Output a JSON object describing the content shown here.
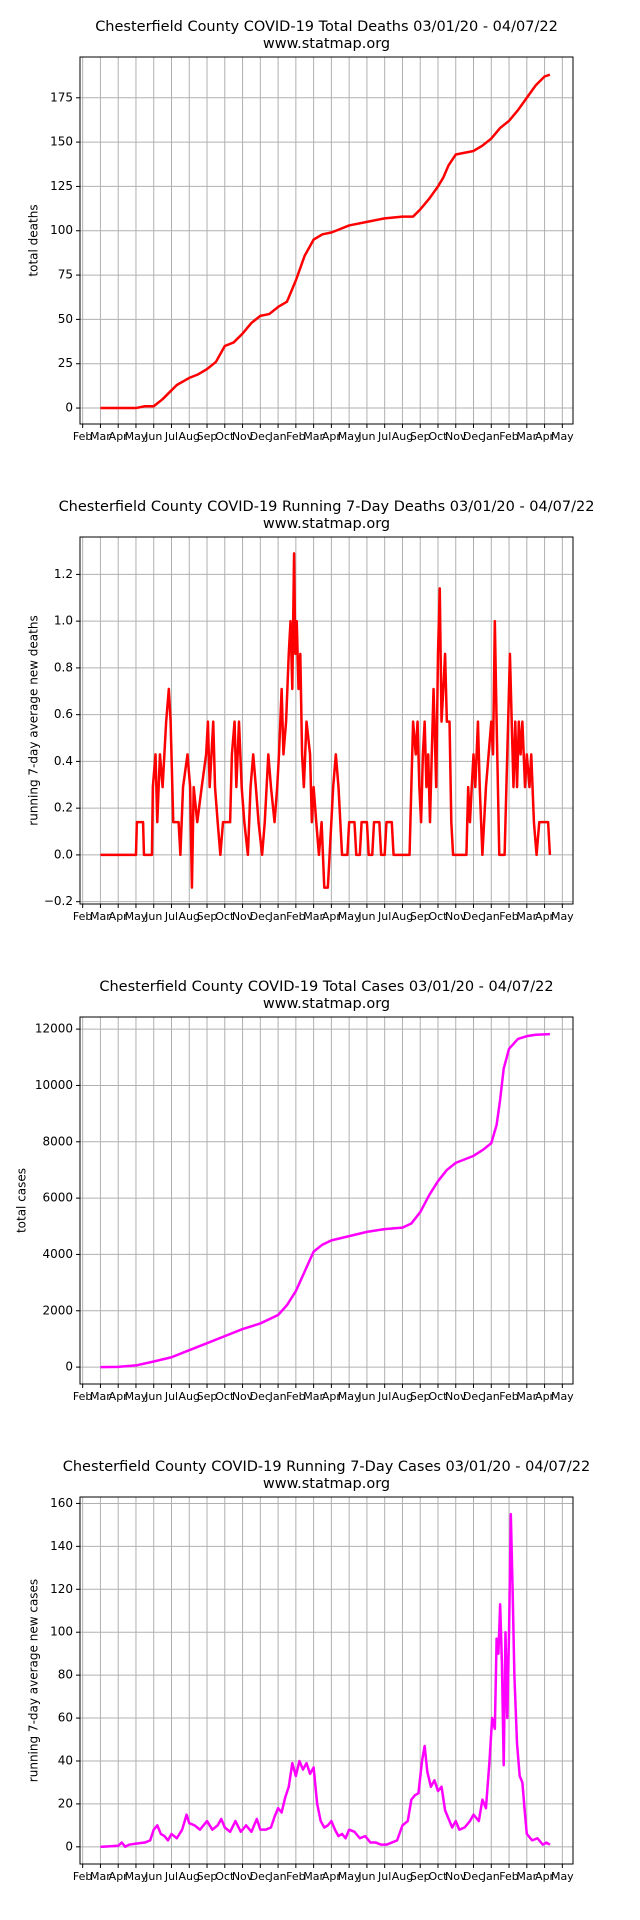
{
  "chart_data": [
    {
      "type": "line",
      "title": "Chesterfield County COVID-19 Total Deaths 03/01/20 - 04/07/22",
      "subtitle": "www.statmap.org",
      "ylabel": "total deaths",
      "color": "#ff0000",
      "grid": true,
      "xlim": [
        -0.15,
        27.6
      ],
      "ylim": [
        -9,
        198
      ],
      "xticks": [
        {
          "value": 0,
          "label": "Feb"
        },
        {
          "value": 1,
          "label": "Mar"
        },
        {
          "value": 2,
          "label": "Apr"
        },
        {
          "value": 3,
          "label": "May"
        },
        {
          "value": 4,
          "label": "Jun"
        },
        {
          "value": 5,
          "label": "Jul"
        },
        {
          "value": 6,
          "label": "Aug"
        },
        {
          "value": 7,
          "label": "Sep"
        },
        {
          "value": 8,
          "label": "Oct"
        },
        {
          "value": 9,
          "label": "Nov"
        },
        {
          "value": 10,
          "label": "Dec"
        },
        {
          "value": 11,
          "label": "Jan"
        },
        {
          "value": 12,
          "label": "Feb"
        },
        {
          "value": 13,
          "label": "Mar"
        },
        {
          "value": 14,
          "label": "Apr"
        },
        {
          "value": 15,
          "label": "May"
        },
        {
          "value": 16,
          "label": "Jun"
        },
        {
          "value": 17,
          "label": "Jul"
        },
        {
          "value": 18,
          "label": "Aug"
        },
        {
          "value": 19,
          "label": "Sep"
        },
        {
          "value": 20,
          "label": "Oct"
        },
        {
          "value": 21,
          "label": "Nov"
        },
        {
          "value": 22,
          "label": "Dec"
        },
        {
          "value": 23,
          "label": "Jan"
        },
        {
          "value": 24,
          "label": "Feb"
        },
        {
          "value": 25,
          "label": "Mar"
        },
        {
          "value": 26,
          "label": "Apr"
        },
        {
          "value": 27,
          "label": "May"
        }
      ],
      "yticks": [
        0,
        25,
        50,
        75,
        100,
        125,
        150,
        175
      ],
      "x": [
        1,
        2,
        3,
        3.5,
        4,
        4.5,
        5,
        5.3,
        6,
        6.5,
        7,
        7.5,
        8,
        8.5,
        9,
        9.5,
        10,
        10.5,
        11,
        11.5,
        12,
        12.5,
        13,
        13.5,
        14,
        14.5,
        15,
        16,
        17,
        18,
        18.6,
        19,
        19.5,
        20,
        20.3,
        20.6,
        21,
        22,
        22.5,
        23,
        23.5,
        24,
        24.5,
        25,
        25.5,
        26,
        26.3
      ],
      "values": [
        0,
        0,
        0,
        1,
        1,
        5,
        10,
        13,
        17,
        19,
        22,
        26,
        35,
        37,
        42,
        48,
        52,
        53,
        57,
        60,
        72,
        86,
        95,
        98,
        99,
        101,
        103,
        105,
        107,
        108,
        108,
        112,
        118,
        125,
        130,
        137,
        143,
        145,
        148,
        152,
        158,
        162,
        168,
        175,
        182,
        187,
        188
      ]
    },
    {
      "type": "line",
      "title": "Chesterfield County COVID-19 Running 7-Day Deaths 03/01/20 - 04/07/22",
      "subtitle": "www.statmap.org",
      "ylabel": "running 7-day average new deaths",
      "color": "#ff0000",
      "grid": true,
      "xlim": [
        -0.15,
        27.6
      ],
      "ylim": [
        -0.21,
        1.36
      ],
      "xticks": [
        {
          "value": 0,
          "label": "Feb"
        },
        {
          "value": 1,
          "label": "Mar"
        },
        {
          "value": 2,
          "label": "Apr"
        },
        {
          "value": 3,
          "label": "May"
        },
        {
          "value": 4,
          "label": "Jun"
        },
        {
          "value": 5,
          "label": "Jul"
        },
        {
          "value": 6,
          "label": "Aug"
        },
        {
          "value": 7,
          "label": "Sep"
        },
        {
          "value": 8,
          "label": "Oct"
        },
        {
          "value": 9,
          "label": "Nov"
        },
        {
          "value": 10,
          "label": "Dec"
        },
        {
          "value": 11,
          "label": "Jan"
        },
        {
          "value": 12,
          "label": "Feb"
        },
        {
          "value": 13,
          "label": "Mar"
        },
        {
          "value": 14,
          "label": "Apr"
        },
        {
          "value": 15,
          "label": "May"
        },
        {
          "value": 16,
          "label": "Jun"
        },
        {
          "value": 17,
          "label": "Jul"
        },
        {
          "value": 18,
          "label": "Aug"
        },
        {
          "value": 19,
          "label": "Sep"
        },
        {
          "value": 20,
          "label": "Oct"
        },
        {
          "value": 21,
          "label": "Nov"
        },
        {
          "value": 22,
          "label": "Dec"
        },
        {
          "value": 23,
          "label": "Jan"
        },
        {
          "value": 24,
          "label": "Feb"
        },
        {
          "value": 25,
          "label": "Mar"
        },
        {
          "value": 26,
          "label": "Apr"
        },
        {
          "value": 27,
          "label": "May"
        }
      ],
      "yticks": [
        {
          "value": -0.2,
          "label": "−0.2"
        },
        {
          "value": 0,
          "label": "0.0"
        },
        {
          "value": 0.2,
          "label": "0.2"
        },
        {
          "value": 0.4,
          "label": "0.4"
        },
        {
          "value": 0.6,
          "label": "0.6"
        },
        {
          "value": 0.8,
          "label": "0.8"
        },
        {
          "value": 1,
          "label": "1.0"
        },
        {
          "value": 1.2,
          "label": "1.2"
        }
      ],
      "x": [
        1,
        3,
        3.05,
        3.4,
        3.45,
        3.9,
        3.95,
        4.1,
        4.2,
        4.35,
        4.5,
        4.7,
        4.85,
        4.95,
        5.1,
        5.4,
        5.5,
        5.65,
        5.9,
        6.05,
        6.15,
        6.25,
        6.45,
        6.7,
        6.95,
        7.05,
        7.15,
        7.35,
        7.45,
        7.6,
        7.75,
        7.9,
        8.3,
        8.4,
        8.55,
        8.65,
        8.8,
        8.95,
        9.1,
        9.3,
        9.45,
        9.6,
        9.75,
        9.9,
        10.1,
        10.25,
        10.45,
        10.6,
        10.8,
        10.95,
        11.05,
        11.2,
        11.3,
        11.45,
        11.6,
        11.7,
        11.8,
        11.9,
        11.97,
        12.05,
        12.15,
        12.25,
        12.35,
        12.45,
        12.6,
        12.8,
        12.9,
        13.0,
        13.15,
        13.3,
        13.45,
        13.6,
        13.8,
        13.9,
        14.1,
        14.25,
        14.4,
        14.6,
        14.9,
        15.0,
        15.3,
        15.4,
        15.6,
        15.7,
        16.0,
        16.1,
        16.3,
        16.4,
        16.7,
        16.8,
        17.0,
        17.1,
        17.4,
        17.5,
        18.4,
        18.5,
        18.6,
        18.75,
        18.85,
        18.95,
        19.05,
        19.15,
        19.25,
        19.35,
        19.45,
        19.55,
        19.65,
        19.75,
        19.9,
        20.0,
        20.1,
        20.2,
        20.3,
        20.4,
        20.5,
        20.65,
        20.75,
        20.85,
        21.6,
        21.7,
        21.8,
        21.9,
        22.0,
        22.1,
        22.25,
        22.35,
        22.5,
        22.7,
        22.85,
        23.0,
        23.1,
        23.2,
        23.3,
        23.45,
        23.75,
        23.85,
        23.95,
        24.05,
        24.15,
        24.25,
        24.35,
        24.45,
        24.55,
        24.65,
        24.75,
        24.9,
        25.0,
        25.15,
        25.25,
        25.4,
        25.55,
        25.7,
        26.2,
        26.3
      ],
      "values": [
        0,
        0,
        0.14,
        0.14,
        0,
        0,
        0.29,
        0.43,
        0.14,
        0.43,
        0.29,
        0.57,
        0.71,
        0.57,
        0.14,
        0.14,
        0,
        0.29,
        0.43,
        0.29,
        -0.14,
        0.29,
        0.14,
        0.29,
        0.43,
        0.57,
        0.29,
        0.57,
        0.29,
        0.14,
        0,
        0.14,
        0.14,
        0.43,
        0.57,
        0.29,
        0.57,
        0.29,
        0.14,
        0,
        0.29,
        0.43,
        0.29,
        0.14,
        0,
        0.14,
        0.43,
        0.29,
        0.14,
        0.29,
        0.43,
        0.71,
        0.43,
        0.57,
        0.86,
        1.0,
        0.71,
        1.29,
        0.86,
        1.0,
        0.71,
        0.86,
        0.43,
        0.29,
        0.57,
        0.43,
        0.14,
        0.29,
        0.14,
        0,
        0.14,
        -0.14,
        -0.14,
        0,
        0.29,
        0.43,
        0.29,
        0,
        0,
        0.14,
        0.14,
        0,
        0,
        0.14,
        0.14,
        0,
        0,
        0.14,
        0.14,
        0,
        0,
        0.14,
        0.14,
        0,
        0,
        0.29,
        0.57,
        0.43,
        0.57,
        0.29,
        0.14,
        0.43,
        0.57,
        0.29,
        0.43,
        0.14,
        0.43,
        0.71,
        0.29,
        0.86,
        1.14,
        0.57,
        0.71,
        0.86,
        0.57,
        0.57,
        0.14,
        0,
        0,
        0.29,
        0.14,
        0.29,
        0.43,
        0.29,
        0.57,
        0.29,
        0,
        0.29,
        0.43,
        0.57,
        0.43,
        1.0,
        0.57,
        0,
        0,
        0.29,
        0.57,
        0.86,
        0.57,
        0.29,
        0.57,
        0.29,
        0.57,
        0.43,
        0.57,
        0.29,
        0.43,
        0.29,
        0.43,
        0.14,
        0,
        0.14,
        0.14,
        0
      ]
    },
    {
      "type": "line",
      "title": "Chesterfield County COVID-19 Total Cases 03/01/20 - 04/07/22",
      "subtitle": "www.statmap.org",
      "ylabel": "total cases",
      "color": "#ff00ff",
      "grid": true,
      "xlim": [
        -0.15,
        27.6
      ],
      "ylim": [
        -600,
        12430
      ],
      "xticks": [
        {
          "value": 0,
          "label": "Feb"
        },
        {
          "value": 1,
          "label": "Mar"
        },
        {
          "value": 2,
          "label": "Apr"
        },
        {
          "value": 3,
          "label": "May"
        },
        {
          "value": 4,
          "label": "Jun"
        },
        {
          "value": 5,
          "label": "Jul"
        },
        {
          "value": 6,
          "label": "Aug"
        },
        {
          "value": 7,
          "label": "Sep"
        },
        {
          "value": 8,
          "label": "Oct"
        },
        {
          "value": 9,
          "label": "Nov"
        },
        {
          "value": 10,
          "label": "Dec"
        },
        {
          "value": 11,
          "label": "Jan"
        },
        {
          "value": 12,
          "label": "Feb"
        },
        {
          "value": 13,
          "label": "Mar"
        },
        {
          "value": 14,
          "label": "Apr"
        },
        {
          "value": 15,
          "label": "May"
        },
        {
          "value": 16,
          "label": "Jun"
        },
        {
          "value": 17,
          "label": "Jul"
        },
        {
          "value": 18,
          "label": "Aug"
        },
        {
          "value": 19,
          "label": "Sep"
        },
        {
          "value": 20,
          "label": "Oct"
        },
        {
          "value": 21,
          "label": "Nov"
        },
        {
          "value": 22,
          "label": "Dec"
        },
        {
          "value": 23,
          "label": "Jan"
        },
        {
          "value": 24,
          "label": "Feb"
        },
        {
          "value": 25,
          "label": "Mar"
        },
        {
          "value": 26,
          "label": "Apr"
        },
        {
          "value": 27,
          "label": "May"
        }
      ],
      "yticks": [
        0,
        2000,
        4000,
        6000,
        8000,
        10000,
        12000
      ],
      "x": [
        1,
        2,
        3,
        4,
        5,
        6,
        7,
        8,
        9,
        10,
        11,
        11.5,
        12,
        12.5,
        13,
        13.5,
        14,
        15,
        16,
        17,
        18,
        18.5,
        19,
        19.5,
        20,
        20.5,
        21,
        22,
        22.5,
        23,
        23.3,
        23.5,
        23.7,
        24,
        24.5,
        25,
        25.5,
        26.3
      ],
      "values": [
        0,
        10,
        60,
        200,
        350,
        600,
        850,
        1100,
        1350,
        1550,
        1850,
        2200,
        2700,
        3400,
        4100,
        4350,
        4500,
        4650,
        4800,
        4900,
        4950,
        5100,
        5500,
        6100,
        6600,
        7000,
        7250,
        7500,
        7700,
        7950,
        8600,
        9500,
        10600,
        11300,
        11650,
        11750,
        11800,
        11820
      ]
    },
    {
      "type": "line",
      "title": "Chesterfield County COVID-19 Running 7-Day Cases 03/01/20 - 04/07/22",
      "subtitle": "www.statmap.org",
      "ylabel": "running 7-day average new cases",
      "color": "#ff00ff",
      "grid": true,
      "xlim": [
        -0.15,
        27.6
      ],
      "ylim": [
        -8,
        163
      ],
      "xticks": [
        {
          "value": 0,
          "label": "Feb"
        },
        {
          "value": 1,
          "label": "Mar"
        },
        {
          "value": 2,
          "label": "Apr"
        },
        {
          "value": 3,
          "label": "May"
        },
        {
          "value": 4,
          "label": "Jun"
        },
        {
          "value": 5,
          "label": "Jul"
        },
        {
          "value": 6,
          "label": "Aug"
        },
        {
          "value": 7,
          "label": "Sep"
        },
        {
          "value": 8,
          "label": "Oct"
        },
        {
          "value": 9,
          "label": "Nov"
        },
        {
          "value": 10,
          "label": "Dec"
        },
        {
          "value": 11,
          "label": "Jan"
        },
        {
          "value": 12,
          "label": "Feb"
        },
        {
          "value": 13,
          "label": "Mar"
        },
        {
          "value": 14,
          "label": "Apr"
        },
        {
          "value": 15,
          "label": "May"
        },
        {
          "value": 16,
          "label": "Jun"
        },
        {
          "value": 17,
          "label": "Jul"
        },
        {
          "value": 18,
          "label": "Aug"
        },
        {
          "value": 19,
          "label": "Sep"
        },
        {
          "value": 20,
          "label": "Oct"
        },
        {
          "value": 21,
          "label": "Nov"
        },
        {
          "value": 22,
          "label": "Dec"
        },
        {
          "value": 23,
          "label": "Jan"
        },
        {
          "value": 24,
          "label": "Feb"
        },
        {
          "value": 25,
          "label": "Mar"
        },
        {
          "value": 26,
          "label": "Apr"
        },
        {
          "value": 27,
          "label": "May"
        }
      ],
      "yticks": [
        0,
        20,
        40,
        60,
        80,
        100,
        120,
        140,
        160
      ],
      "x": [
        1,
        2,
        2.2,
        2.4,
        2.6,
        3,
        3.5,
        3.8,
        4,
        4.2,
        4.4,
        4.6,
        4.8,
        5,
        5.3,
        5.6,
        5.85,
        6,
        6.3,
        6.6,
        7,
        7.3,
        7.6,
        7.8,
        8,
        8.3,
        8.6,
        8.9,
        9.2,
        9.5,
        9.8,
        10,
        10.3,
        10.6,
        10.8,
        11,
        11.2,
        11.4,
        11.6,
        11.8,
        12,
        12.2,
        12.4,
        12.6,
        12.8,
        13,
        13.2,
        13.4,
        13.6,
        13.8,
        14,
        14.2,
        14.4,
        14.6,
        14.8,
        15,
        15.3,
        15.6,
        15.9,
        16.2,
        16.5,
        16.8,
        17.1,
        17.4,
        17.7,
        18,
        18.3,
        18.5,
        18.7,
        18.9,
        19.1,
        19.25,
        19.4,
        19.6,
        19.8,
        20,
        20.2,
        20.4,
        20.6,
        20.8,
        21,
        21.2,
        21.5,
        21.8,
        22,
        22.3,
        22.5,
        22.7,
        22.9,
        23.05,
        23.2,
        23.3,
        23.4,
        23.5,
        23.6,
        23.7,
        23.8,
        23.9,
        24.0,
        24.1,
        24.2,
        24.3,
        24.45,
        24.6,
        24.75,
        24.9,
        25.0,
        25.3,
        25.6,
        25.9,
        26.1,
        26.3
      ],
      "values": [
        0,
        0.5,
        2,
        0,
        1,
        1.5,
        2,
        3,
        8,
        10,
        6,
        5,
        3,
        6,
        4,
        8,
        15,
        11,
        10,
        8,
        12,
        8,
        10,
        13,
        9,
        7,
        12,
        7,
        10,
        7,
        13,
        8,
        8,
        9,
        14,
        18,
        16,
        23,
        28,
        39,
        33,
        40,
        36,
        39,
        34,
        37,
        20,
        12,
        9,
        10,
        12,
        8,
        5,
        6,
        4,
        8,
        7,
        4,
        5,
        2,
        2,
        1,
        1,
        2,
        3,
        10,
        12,
        22,
        24,
        25,
        40,
        47,
        35,
        28,
        31,
        26,
        28,
        17,
        13,
        9,
        12,
        8,
        9,
        12,
        15,
        12,
        22,
        18,
        40,
        60,
        55,
        97,
        90,
        113,
        85,
        38,
        100,
        60,
        100,
        155,
        120,
        80,
        48,
        33,
        30,
        15,
        6,
        3,
        4,
        1,
        2,
        1
      ]
    }
  ]
}
